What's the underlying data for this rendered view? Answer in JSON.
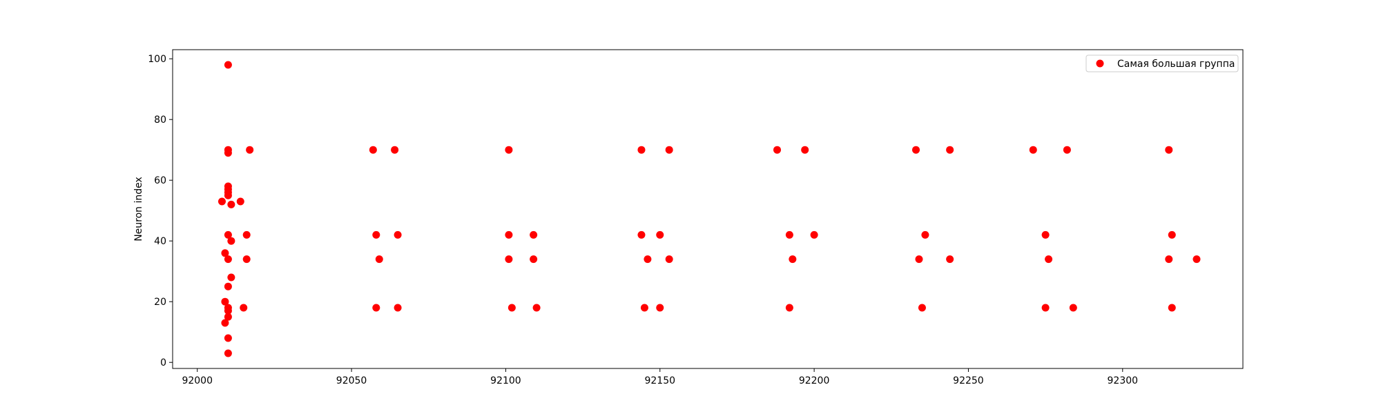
{
  "chart_data": {
    "type": "scatter",
    "title": "",
    "xlabel": "",
    "ylabel": "Neuron index",
    "xlim": [
      91992,
      92339
    ],
    "ylim": [
      -2,
      103
    ],
    "xticks": [
      92000,
      92050,
      92100,
      92150,
      92200,
      92250,
      92300
    ],
    "yticks": [
      0,
      20,
      40,
      60,
      80,
      100
    ],
    "grid": false,
    "legend_position": "top-right",
    "series": [
      {
        "name": "Самая большая группа",
        "color": "#ff0000",
        "points": [
          [
            92010,
            98
          ],
          [
            92010,
            70
          ],
          [
            92010,
            69
          ],
          [
            92017,
            70
          ],
          [
            92010,
            58
          ],
          [
            92010,
            57
          ],
          [
            92010,
            56
          ],
          [
            92010,
            55
          ],
          [
            92008,
            53
          ],
          [
            92014,
            53
          ],
          [
            92011,
            52
          ],
          [
            92010,
            42
          ],
          [
            92016,
            42
          ],
          [
            92011,
            40
          ],
          [
            92009,
            36
          ],
          [
            92010,
            34
          ],
          [
            92016,
            34
          ],
          [
            92011,
            28
          ],
          [
            92010,
            25
          ],
          [
            92009,
            20
          ],
          [
            92010,
            18
          ],
          [
            92010,
            17
          ],
          [
            92015,
            18
          ],
          [
            92010,
            15
          ],
          [
            92009,
            13
          ],
          [
            92010,
            8
          ],
          [
            92010,
            3
          ],
          [
            92057,
            70
          ],
          [
            92064,
            70
          ],
          [
            92058,
            42
          ],
          [
            92065,
            42
          ],
          [
            92059,
            34
          ],
          [
            92058,
            18
          ],
          [
            92065,
            18
          ],
          [
            92101,
            70
          ],
          [
            92101,
            42
          ],
          [
            92109,
            42
          ],
          [
            92101,
            34
          ],
          [
            92109,
            34
          ],
          [
            92102,
            18
          ],
          [
            92110,
            18
          ],
          [
            92144,
            70
          ],
          [
            92153,
            70
          ],
          [
            92144,
            42
          ],
          [
            92150,
            42
          ],
          [
            92146,
            34
          ],
          [
            92153,
            34
          ],
          [
            92145,
            18
          ],
          [
            92150,
            18
          ],
          [
            92188,
            70
          ],
          [
            92197,
            70
          ],
          [
            92192,
            42
          ],
          [
            92200,
            42
          ],
          [
            92193,
            34
          ],
          [
            92192,
            18
          ],
          [
            92233,
            70
          ],
          [
            92244,
            70
          ],
          [
            92236,
            42
          ],
          [
            92234,
            34
          ],
          [
            92244,
            34
          ],
          [
            92235,
            18
          ],
          [
            92271,
            70
          ],
          [
            92282,
            70
          ],
          [
            92275,
            42
          ],
          [
            92276,
            34
          ],
          [
            92275,
            18
          ],
          [
            92284,
            18
          ],
          [
            92315,
            70
          ],
          [
            92316,
            42
          ],
          [
            92315,
            34
          ],
          [
            92324,
            34
          ],
          [
            92316,
            18
          ]
        ]
      }
    ]
  }
}
